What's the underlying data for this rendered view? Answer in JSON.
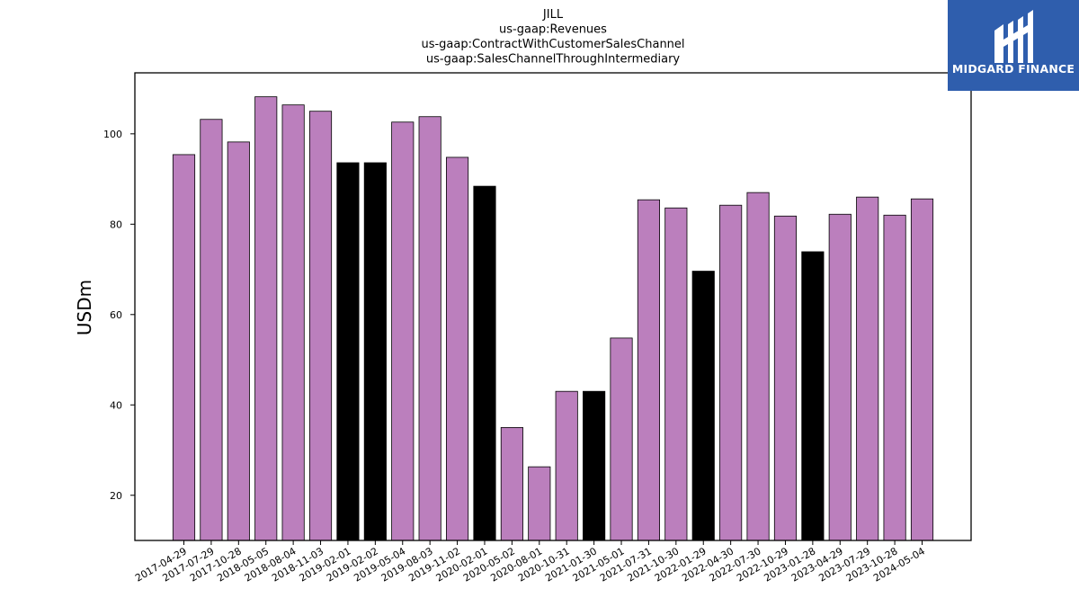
{
  "chart_data": {
    "type": "bar",
    "title_lines": [
      "JILL",
      "us-gaap:Revenues",
      "us-gaap:ContractWithCustomerSalesChannel",
      "us-gaap:SalesChannelThroughIntermediary"
    ],
    "xlabel": "",
    "ylabel": "USDm",
    "ylim": [
      10,
      113.5
    ],
    "yticks": [
      20,
      40,
      60,
      80,
      100
    ],
    "grid": false,
    "categories": [
      "2017-04-29",
      "2017-07-29",
      "2017-10-28",
      "2018-05-05",
      "2018-08-04",
      "2018-11-03",
      "2019-02-01",
      "2019-02-02",
      "2019-05-04",
      "2019-08-03",
      "2019-11-02",
      "2020-02-01",
      "2020-05-02",
      "2020-08-01",
      "2020-10-31",
      "2021-01-30",
      "2021-05-01",
      "2021-07-31",
      "2021-10-30",
      "2022-01-29",
      "2022-04-30",
      "2022-07-30",
      "2022-10-29",
      "2023-01-28",
      "2023-04-29",
      "2023-07-29",
      "2023-10-28",
      "2024-05-04"
    ],
    "values": [
      95.4,
      103.2,
      98.2,
      108.2,
      106.4,
      105.0,
      93.6,
      93.6,
      102.6,
      103.8,
      94.8,
      88.4,
      35.0,
      26.3,
      43.0,
      43.0,
      54.8,
      85.4,
      83.6,
      69.6,
      84.2,
      87.0,
      81.8,
      73.9,
      82.2,
      86.0,
      82.0,
      85.6
    ],
    "bar_colors": [
      "#bb7fbd",
      "#bb7fbd",
      "#bb7fbd",
      "#bb7fbd",
      "#bb7fbd",
      "#bb7fbd",
      "#000000",
      "#000000",
      "#bb7fbd",
      "#bb7fbd",
      "#bb7fbd",
      "#000000",
      "#bb7fbd",
      "#bb7fbd",
      "#bb7fbd",
      "#000000",
      "#bb7fbd",
      "#bb7fbd",
      "#bb7fbd",
      "#000000",
      "#bb7fbd",
      "#bb7fbd",
      "#bb7fbd",
      "#000000",
      "#bb7fbd",
      "#bb7fbd",
      "#bb7fbd",
      "#bb7fbd"
    ]
  },
  "logo": {
    "text": "MIDGARD FINANCE",
    "background": "#2f5ead"
  }
}
